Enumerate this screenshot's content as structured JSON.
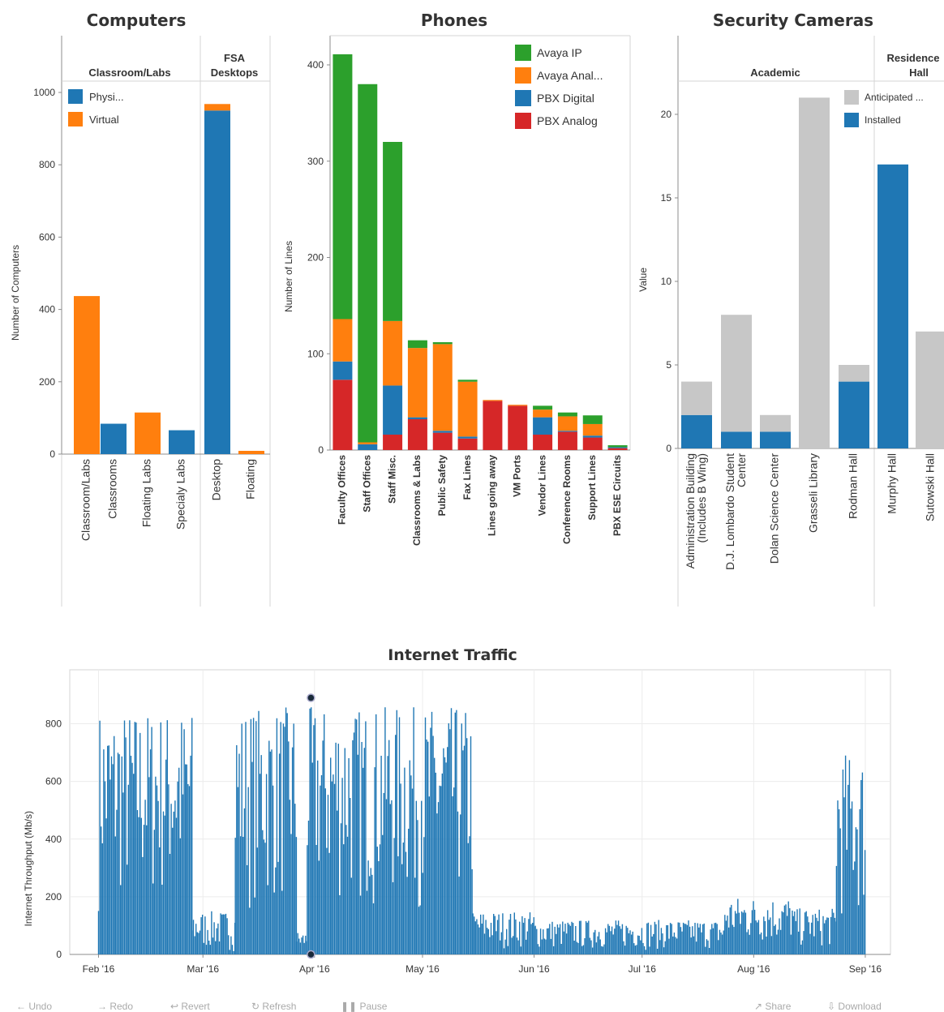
{
  "chart_data": [
    {
      "type": "bar",
      "title": "Computers",
      "ylabel": "Number of Computers",
      "xlabel": "",
      "ylim": [
        0,
        1100
      ],
      "yticks": [
        0,
        200,
        400,
        600,
        800,
        1000
      ],
      "groups": [
        {
          "name": "Classroom/Labs",
          "categories": [
            "Classroom/Labs",
            "Classrooms",
            "Floating Labs",
            "Specialy Labs"
          ]
        },
        {
          "name": "FSA Desktops",
          "categories": [
            "Desktop",
            "Floating"
          ]
        }
      ],
      "series": [
        {
          "name": "Physi...",
          "color": "#1f77b4",
          "values": [
            0,
            84,
            0,
            66,
            950,
            0
          ]
        },
        {
          "name": "Virtual",
          "color": "#ff7f0e",
          "values": [
            437,
            0,
            115,
            0,
            18,
            9
          ]
        }
      ],
      "legend_position": "top-left",
      "grid": false
    },
    {
      "type": "bar",
      "title": "Phones",
      "ylabel": "Number of Lines",
      "xlabel": "",
      "ylim": [
        0,
        430
      ],
      "yticks": [
        0,
        100,
        200,
        300,
        400
      ],
      "categories": [
        "Faculty Offices",
        "Staff Offices",
        "Staff Misc.",
        "Classrooms & Labs",
        "Public Safety",
        "Fax Lines",
        "Lines going away",
        "VM Ports",
        "Vendor Lines",
        "Conference Rooms",
        "Support Lines",
        "PBX ESE Circuits"
      ],
      "series": [
        {
          "name": "PBX Analog",
          "color": "#d62728",
          "values": [
            73,
            0,
            16,
            32,
            18,
            12,
            51,
            46,
            16,
            19,
            13,
            2
          ]
        },
        {
          "name": "PBX Digital",
          "color": "#1f77b4",
          "values": [
            19,
            6,
            51,
            2,
            2,
            2,
            0,
            0,
            18,
            1,
            2,
            1
          ]
        },
        {
          "name": "Avaya Anal...",
          "color": "#ff7f0e",
          "values": [
            44,
            2,
            67,
            72,
            90,
            57,
            1,
            1,
            8,
            15,
            12,
            0
          ]
        },
        {
          "name": "Avaya IP",
          "color": "#2ca02c",
          "values": [
            275,
            372,
            186,
            8,
            2,
            2,
            0,
            0,
            4,
            4,
            9,
            2
          ]
        }
      ],
      "legend_position": "top-right",
      "grid": false
    },
    {
      "type": "bar",
      "title": "Security Cameras",
      "ylabel": "Value",
      "xlabel": "",
      "ylim": [
        0,
        22.5
      ],
      "yticks": [
        0,
        5,
        10,
        15,
        20
      ],
      "groups": [
        {
          "name": "Academic",
          "categories": [
            "Administration Building (Includes B Wing)",
            "D.J. Lombardo Student Center",
            "Dolan Science Center",
            "Grasseli Library",
            "Rodman Hall"
          ]
        },
        {
          "name": "Residence Hall",
          "categories": [
            "Murphy Hall",
            "Sutowski Hall"
          ]
        }
      ],
      "series": [
        {
          "name": "Installed",
          "color": "#1f77b4",
          "values": [
            2,
            1,
            1,
            0,
            4,
            17,
            0
          ]
        },
        {
          "name": "Anticipated ...",
          "color": "#c7c7c7",
          "values": [
            2,
            7,
            1,
            21,
            1,
            0,
            7
          ]
        }
      ],
      "legend_position": "top-right",
      "grid": false
    },
    {
      "type": "area",
      "title": "Internet Traffic",
      "ylabel": "Internet Throughput (Mb/s)",
      "xlabel": "",
      "xticks": [
        "Feb '16",
        "Mar '16",
        "Apr '16",
        "May '16",
        "Jun '16",
        "Jul '16",
        "Aug '16",
        "Sep '16"
      ],
      "xrange": [
        "2016-01-24",
        "2016-09-08"
      ],
      "ylim": [
        0,
        960
      ],
      "yticks": [
        0,
        200,
        400,
        600,
        800
      ],
      "color": "#1f77b4",
      "grid": true,
      "segments": [
        {
          "start": "2016-02-01",
          "end": "2016-02-27",
          "max": 850,
          "min": 150
        },
        {
          "start": "2016-02-27",
          "end": "2016-03-10",
          "max": 150,
          "min": 10
        },
        {
          "start": "2016-03-10",
          "end": "2016-03-27",
          "max": 860,
          "min": 150
        },
        {
          "start": "2016-03-27",
          "end": "2016-03-30",
          "max": 80,
          "min": 5
        },
        {
          "start": "2016-03-30",
          "end": "2016-05-15",
          "max": 860,
          "min": 150
        },
        {
          "start": "2016-05-15",
          "end": "2016-06-01",
          "max": 150,
          "min": 20
        },
        {
          "start": "2016-06-01",
          "end": "2016-07-24",
          "max": 120,
          "min": 15
        },
        {
          "start": "2016-07-24",
          "end": "2016-08-12",
          "max": 200,
          "min": 30
        },
        {
          "start": "2016-08-12",
          "end": "2016-08-24",
          "max": 160,
          "min": 20
        },
        {
          "start": "2016-08-24",
          "end": "2016-09-01",
          "max": 700,
          "min": 100
        }
      ],
      "markers": [
        {
          "x": "2016-03-31",
          "y": 890
        },
        {
          "x": "2016-03-31",
          "y": 0
        }
      ]
    }
  ],
  "toolbar": {
    "undo": "Undo",
    "redo": "Redo",
    "revert": "Revert",
    "refresh": "Refresh",
    "pause": "Pause",
    "share": "Share",
    "download": "Download"
  }
}
